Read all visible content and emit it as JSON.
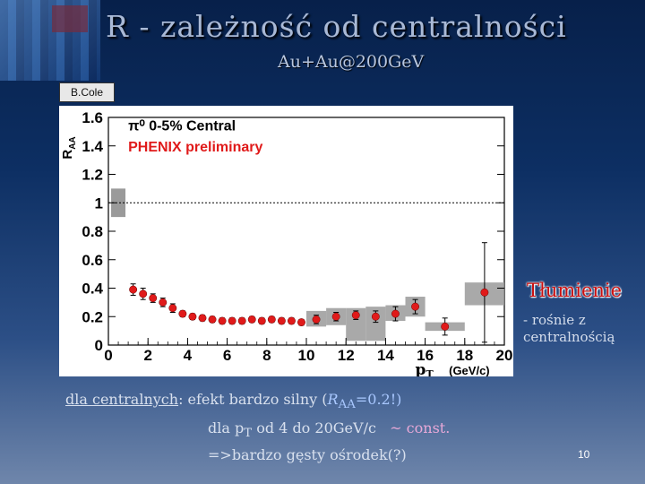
{
  "slide": {
    "title": "R  -  zależność od  centralności",
    "subtitle": "Au+Au@200GeV",
    "credit": "B.Cole",
    "annotation_title": "Tłumienie",
    "annotation_line1": "-  rośnie z",
    "annotation_line2": "centralnością",
    "bottom_label": "dla centralnych",
    "bottom_text": ": efekt bardzo silny (",
    "bottom_raa": "R",
    "bottom_raa_sub": "AA",
    "bottom_raa_val": "=0.2!)",
    "line2_prefix": "dla p",
    "line2_sub": "T",
    "line2_mid": " od 4 do 20GeV/c   ",
    "line2_const": "~ const.",
    "line3": "=>bardzo gęsty ośrodek(?)",
    "page_number": "10"
  },
  "colors": {
    "data_points": "#e01a1a",
    "subtitle_text": "#e01a1a",
    "band": "#9a9a9a",
    "annotation": "#cc1111"
  },
  "chart_data": {
    "type": "scatter",
    "title": "π⁰ 0-5% Central",
    "subtitle": "PHENIX preliminary",
    "xlabel": "p",
    "xlabel_sub": "T",
    "xlabel_unit": "(GeV/c)",
    "ylabel": "R",
    "ylabel_sub": "AA",
    "xlim": [
      0,
      20
    ],
    "ylim": [
      0,
      1.6
    ],
    "xticks": [
      0,
      2,
      4,
      6,
      8,
      10,
      12,
      14,
      16,
      18,
      20
    ],
    "yticks": [
      0,
      0.2,
      0.4,
      0.6,
      0.8,
      1,
      1.2,
      1.4,
      1.6
    ],
    "reference_line": 1,
    "normalization_box": {
      "x": 0.5,
      "ylow": 0.9,
      "yhigh": 1.1
    },
    "series": [
      {
        "points": [
          {
            "x": 1.25,
            "y": 0.39,
            "err": 0.04
          },
          {
            "x": 1.75,
            "y": 0.36,
            "err": 0.04
          },
          {
            "x": 2.25,
            "y": 0.33,
            "err": 0.03
          },
          {
            "x": 2.75,
            "y": 0.3,
            "err": 0.03
          },
          {
            "x": 3.25,
            "y": 0.26,
            "err": 0.03
          },
          {
            "x": 3.75,
            "y": 0.22,
            "err": 0.02
          },
          {
            "x": 4.25,
            "y": 0.2,
            "err": 0.02
          },
          {
            "x": 4.75,
            "y": 0.19,
            "err": 0.02
          },
          {
            "x": 5.25,
            "y": 0.18,
            "err": 0.02
          },
          {
            "x": 5.75,
            "y": 0.17,
            "err": 0.02
          },
          {
            "x": 6.25,
            "y": 0.17,
            "err": 0.02
          },
          {
            "x": 6.75,
            "y": 0.17,
            "err": 0.02
          },
          {
            "x": 7.25,
            "y": 0.18,
            "err": 0.02
          },
          {
            "x": 7.75,
            "y": 0.17,
            "err": 0.02
          },
          {
            "x": 8.25,
            "y": 0.18,
            "err": 0.02
          },
          {
            "x": 8.75,
            "y": 0.17,
            "err": 0.02
          },
          {
            "x": 9.25,
            "y": 0.17,
            "err": 0.02
          },
          {
            "x": 9.75,
            "y": 0.16,
            "err": 0.02
          },
          {
            "x": 10.5,
            "y": 0.18,
            "err": 0.03
          },
          {
            "x": 11.5,
            "y": 0.2,
            "err": 0.03
          },
          {
            "x": 12.5,
            "y": 0.21,
            "err": 0.03
          },
          {
            "x": 13.5,
            "y": 0.2,
            "err": 0.04
          },
          {
            "x": 14.5,
            "y": 0.22,
            "err": 0.05
          },
          {
            "x": 15.5,
            "y": 0.27,
            "err": 0.05
          },
          {
            "x": 17.0,
            "y": 0.13,
            "err": 0.06
          },
          {
            "x": 19.0,
            "y": 0.37,
            "err": 0.35
          }
        ]
      }
    ],
    "systematic_bands": [
      {
        "x0": 10.0,
        "x1": 11.0,
        "ylow": 0.13,
        "yhigh": 0.24
      },
      {
        "x0": 11.0,
        "x1": 12.0,
        "ylow": 0.14,
        "yhigh": 0.26
      },
      {
        "x0": 12.0,
        "x1": 13.0,
        "ylow": 0.03,
        "yhigh": 0.26
      },
      {
        "x0": 13.0,
        "x1": 14.0,
        "ylow": 0.03,
        "yhigh": 0.27
      },
      {
        "x0": 14.0,
        "x1": 15.0,
        "ylow": 0.17,
        "yhigh": 0.28
      },
      {
        "x0": 15.0,
        "x1": 16.0,
        "ylow": 0.2,
        "yhigh": 0.34
      },
      {
        "x0": 16.0,
        "x1": 18.0,
        "ylow": 0.1,
        "yhigh": 0.16
      },
      {
        "x0": 18.0,
        "x1": 20.0,
        "ylow": 0.28,
        "yhigh": 0.44
      }
    ]
  }
}
